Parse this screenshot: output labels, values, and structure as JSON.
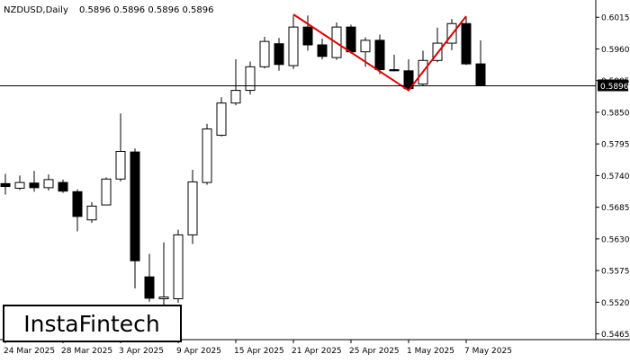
{
  "header": {
    "symbol_label": "NZDUSD,Daily",
    "ohlc_label": "0.5896 0.5896 0.5896 0.5896"
  },
  "watermark": {
    "text": "InstaFintech"
  },
  "colors": {
    "background": "#ffffff",
    "candle_bull_fill": "#ffffff",
    "candle_bear_fill": "#000000",
    "candle_outline": "#000000",
    "pattern_line": "#e00000",
    "price_line": "#000000",
    "current_price_box_bg": "#000000",
    "current_price_box_text": "#ffffff"
  },
  "chart_data": {
    "type": "candlestick",
    "symbol": "NZDUSD",
    "timeframe": "Daily",
    "current_price": 0.5896,
    "current_price_label": "0.5896",
    "ylim": [
      0.5455,
      0.6045
    ],
    "y_ticks": [
      "0.6015",
      "0.5960",
      "0.5905",
      "0.5850",
      "0.5795",
      "0.5740",
      "0.5685",
      "0.5630",
      "0.5575",
      "0.5520",
      "0.5465"
    ],
    "x_tick_labels": [
      {
        "label": "24 Mar 2025",
        "index": 0
      },
      {
        "label": "28 Mar 2025",
        "index": 4
      },
      {
        "label": "3 Apr 2025",
        "index": 8
      },
      {
        "label": "9 Apr 2025",
        "index": 12
      },
      {
        "label": "15 Apr 2025",
        "index": 16
      },
      {
        "label": "21 Apr 2025",
        "index": 20
      },
      {
        "label": "25 Apr 2025",
        "index": 24
      },
      {
        "label": "1 May 2025",
        "index": 28
      },
      {
        "label": "7 May 2025",
        "index": 32
      }
    ],
    "candles": [
      {
        "o": 0.5726,
        "h": 0.5743,
        "l": 0.5707,
        "c": 0.5721
      },
      {
        "o": 0.5718,
        "h": 0.574,
        "l": 0.5715,
        "c": 0.5728
      },
      {
        "o": 0.5727,
        "h": 0.5748,
        "l": 0.5712,
        "c": 0.5719
      },
      {
        "o": 0.5719,
        "h": 0.5742,
        "l": 0.5714,
        "c": 0.5733
      },
      {
        "o": 0.5728,
        "h": 0.5733,
        "l": 0.571,
        "c": 0.5713
      },
      {
        "o": 0.5712,
        "h": 0.5716,
        "l": 0.5643,
        "c": 0.5669
      },
      {
        "o": 0.5663,
        "h": 0.5694,
        "l": 0.5658,
        "c": 0.5687
      },
      {
        "o": 0.5689,
        "h": 0.5737,
        "l": 0.5689,
        "c": 0.5734
      },
      {
        "o": 0.5734,
        "h": 0.5848,
        "l": 0.573,
        "c": 0.5782
      },
      {
        "o": 0.5781,
        "h": 0.5787,
        "l": 0.5544,
        "c": 0.5592
      },
      {
        "o": 0.5564,
        "h": 0.5604,
        "l": 0.5521,
        "c": 0.5527
      },
      {
        "o": 0.5526,
        "h": 0.5624,
        "l": 0.5515,
        "c": 0.5529
      },
      {
        "o": 0.5526,
        "h": 0.5646,
        "l": 0.5519,
        "c": 0.5637
      },
      {
        "o": 0.5637,
        "h": 0.575,
        "l": 0.5621,
        "c": 0.5729
      },
      {
        "o": 0.5728,
        "h": 0.583,
        "l": 0.5724,
        "c": 0.5821
      },
      {
        "o": 0.581,
        "h": 0.5876,
        "l": 0.5808,
        "c": 0.5866
      },
      {
        "o": 0.5866,
        "h": 0.5942,
        "l": 0.5862,
        "c": 0.5888
      },
      {
        "o": 0.5888,
        "h": 0.5938,
        "l": 0.5881,
        "c": 0.5929
      },
      {
        "o": 0.5929,
        "h": 0.5981,
        "l": 0.5926,
        "c": 0.5973
      },
      {
        "o": 0.5969,
        "h": 0.5979,
        "l": 0.5922,
        "c": 0.5933
      },
      {
        "o": 0.5931,
        "h": 0.6018,
        "l": 0.5925,
        "c": 0.5998
      },
      {
        "o": 0.5998,
        "h": 0.6018,
        "l": 0.5957,
        "c": 0.5967
      },
      {
        "o": 0.5967,
        "h": 0.5978,
        "l": 0.5942,
        "c": 0.5947
      },
      {
        "o": 0.5945,
        "h": 0.6006,
        "l": 0.5941,
        "c": 0.5998
      },
      {
        "o": 0.5998,
        "h": 0.6002,
        "l": 0.5952,
        "c": 0.5955
      },
      {
        "o": 0.5955,
        "h": 0.598,
        "l": 0.5929,
        "c": 0.5975
      },
      {
        "o": 0.5975,
        "h": 0.5985,
        "l": 0.5916,
        "c": 0.5924
      },
      {
        "o": 0.5924,
        "h": 0.595,
        "l": 0.5921,
        "c": 0.5922
      },
      {
        "o": 0.5922,
        "h": 0.5942,
        "l": 0.5889,
        "c": 0.5891
      },
      {
        "o": 0.5899,
        "h": 0.5957,
        "l": 0.5896,
        "c": 0.594
      },
      {
        "o": 0.594,
        "h": 0.5997,
        "l": 0.5937,
        "c": 0.597
      },
      {
        "o": 0.597,
        "h": 0.6012,
        "l": 0.5958,
        "c": 0.6004
      },
      {
        "o": 0.6004,
        "h": 0.6015,
        "l": 0.5932,
        "c": 0.5934
      },
      {
        "o": 0.5934,
        "h": 0.5975,
        "l": 0.5896,
        "c": 0.5896
      }
    ],
    "pattern": {
      "name": "Double Top",
      "points": [
        {
          "index": 20,
          "price": 0.602
        },
        {
          "index": 28,
          "price": 0.5888
        },
        {
          "index": 32,
          "price": 0.6017
        }
      ]
    },
    "grid": false
  }
}
